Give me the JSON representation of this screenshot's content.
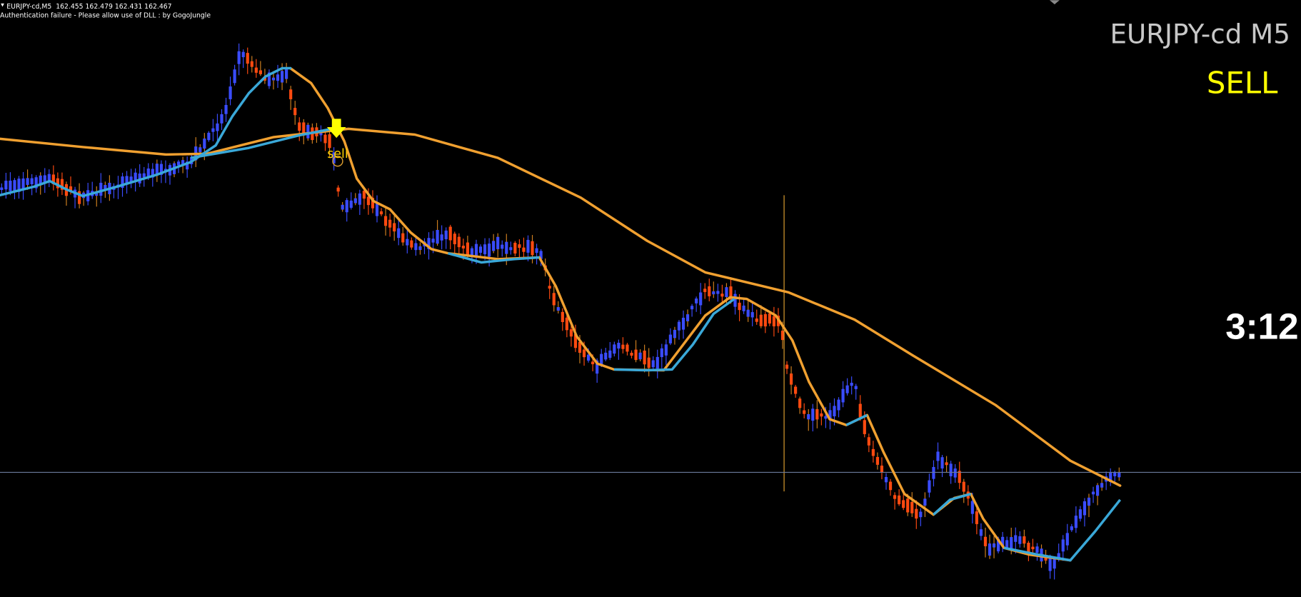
{
  "header": {
    "symbol_info": "EURJPY-cd,M5  162.455 162.479 162.431 162.467",
    "message": "Authentication failure - Please allow use of DLL : by GogoJungle"
  },
  "labels": {
    "symbol": "EURJPY-cd M5",
    "signal": "SELL",
    "timer": "3:12",
    "arrow_label": "sell"
  }
}
